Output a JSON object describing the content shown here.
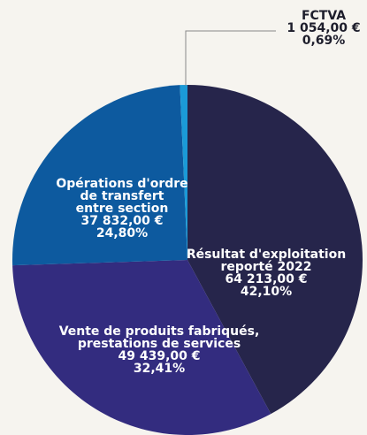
{
  "chart_data": {
    "type": "pie",
    "categories": [
      [
        "Résultat d'exploitation",
        "reporté 2022"
      ],
      [
        "Vente de produits fabriqués,",
        "prestations de services"
      ],
      [
        "Opérations d'ordre",
        "de transfert",
        "entre section"
      ],
      [
        "FCTVA"
      ]
    ],
    "values": [
      42.1,
      32.41,
      24.8,
      0.69
    ],
    "value_labels": [
      "42,10%",
      "32,41%",
      "24,80%",
      "0,69%"
    ],
    "amount_labels": [
      "64 213,00 €",
      "49 439,00 €",
      "37 832,00 €",
      "1 054,00 €"
    ],
    "colors": [
      "#26254b",
      "#332c7f",
      "#0d5a9f",
      "#1b9ad7"
    ]
  }
}
